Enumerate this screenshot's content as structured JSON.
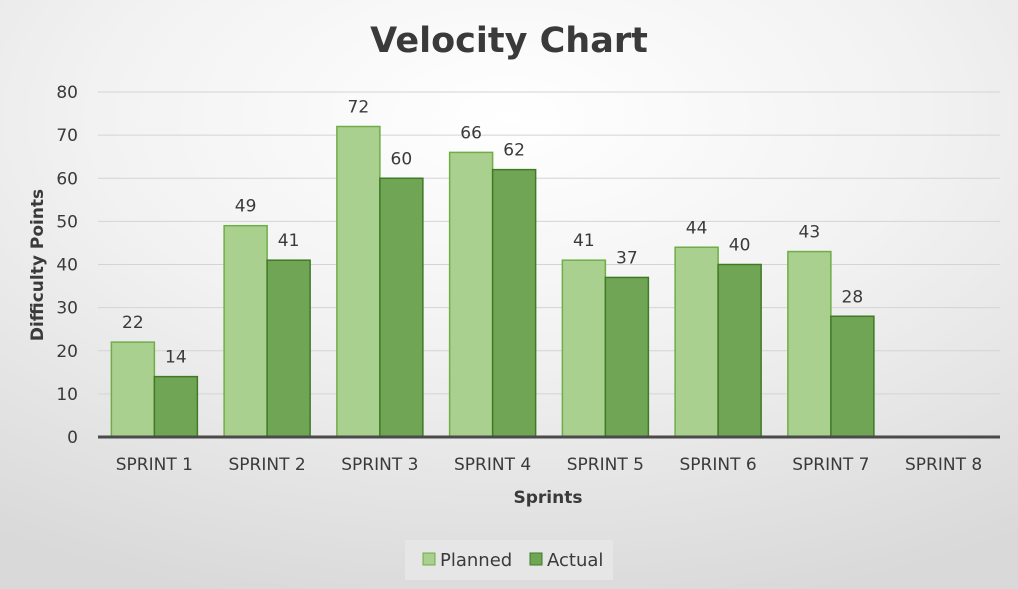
{
  "chart_data": {
    "type": "bar",
    "title": "Velocity Chart",
    "xlabel": "Sprints",
    "ylabel": "Difficulty Points",
    "ylim": [
      0,
      80
    ],
    "yticks": [
      0,
      10,
      20,
      30,
      40,
      50,
      60,
      70,
      80
    ],
    "grid": true,
    "legend_position": "bottom",
    "categories": [
      "SPRINT 1",
      "SPRINT 2",
      "SPRINT 3",
      "SPRINT 4",
      "SPRINT 5",
      "SPRINT 6",
      "SPRINT 7",
      "SPRINT 8"
    ],
    "series": [
      {
        "name": "Planned",
        "values": [
          22,
          49,
          72,
          66,
          41,
          44,
          43,
          null
        ],
        "color": "#a9d08e",
        "stroke": "#70ad47"
      },
      {
        "name": "Actual",
        "values": [
          14,
          41,
          60,
          62,
          37,
          40,
          28,
          null
        ],
        "color": "#70a555",
        "stroke": "#3f7a25"
      }
    ]
  }
}
